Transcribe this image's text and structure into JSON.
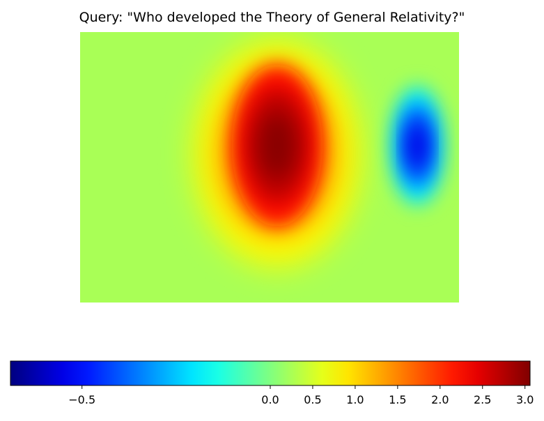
{
  "chart_data": {
    "type": "heatmap",
    "title": "Query: \"Who developed the Theory of General Relativity?\"",
    "xlabel": "",
    "ylabel": "",
    "axes_visible": false,
    "colormap": "jet",
    "norm": {
      "vmin": -0.69,
      "vcenter": 0.0,
      "vmax": 3.06
    },
    "colorbar": {
      "orientation": "horizontal",
      "placement": "bottom",
      "ticks": [
        -0.5,
        0.0,
        0.5,
        1.0,
        1.5,
        2.0,
        2.5,
        3.0
      ],
      "tick_labels": [
        "−0.5",
        "0.0",
        "0.5",
        "1.0",
        "1.5",
        "2.0",
        "2.5",
        "3.0"
      ]
    },
    "background_value": 0.25,
    "regions": [
      {
        "name": "central-hotspot",
        "cx": 0.52,
        "cy": 0.45,
        "rx": 0.22,
        "ry": 0.42,
        "peak": 1.3
      },
      {
        "name": "central-core",
        "cx": 0.52,
        "cy": 0.42,
        "rx": 0.12,
        "ry": 0.3,
        "peak": 3.0
      },
      {
        "name": "right-cold-spot",
        "cx": 0.89,
        "cy": 0.42,
        "rx": 0.07,
        "ry": 0.22,
        "peak": -0.5
      }
    ]
  }
}
